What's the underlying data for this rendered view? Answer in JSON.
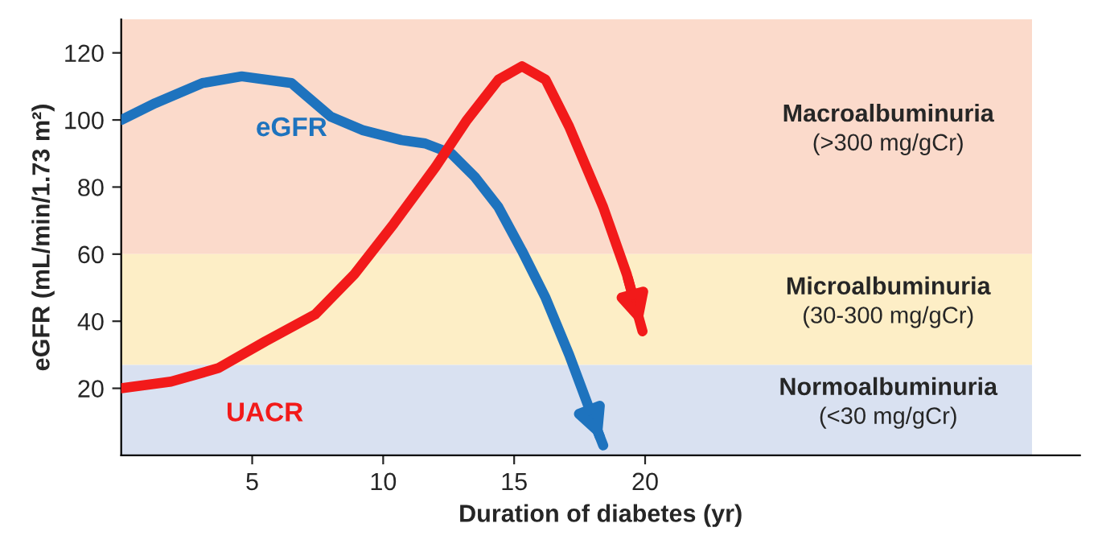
{
  "chart_data": {
    "type": "line",
    "xlabel": "Duration of diabetes (yr)",
    "ylabel": "eGFR (mL/min/1.73 m²)",
    "xlim": [
      0,
      36.6
    ],
    "ylim": [
      0,
      130
    ],
    "xticks": [
      5,
      10,
      15,
      20
    ],
    "yticks": [
      20,
      40,
      60,
      80,
      100,
      120
    ],
    "grid": false,
    "legend": false,
    "marker": "none",
    "line_style": "solid",
    "series": [
      {
        "name": "eGFR",
        "color": "#1e73be",
        "x": [
          0,
          1.3,
          3.1,
          4.6,
          6.5,
          7.1,
          8,
          9.2,
          10.7,
          11.6,
          12.6,
          13.5,
          14.4,
          15.3,
          16.2,
          17.1,
          18.2,
          18.4
        ],
        "values": [
          100,
          105,
          111,
          113,
          111,
          107,
          101,
          97,
          94,
          93,
          90,
          83,
          74,
          61,
          47,
          30,
          7,
          3
        ]
      },
      {
        "name": "UACR",
        "color": "#f21a1a",
        "x": [
          0,
          1.9,
          3.7,
          5.5,
          7.4,
          8.9,
          10.4,
          12,
          13.2,
          14.4,
          15.3,
          16.2,
          17.1,
          18.4,
          19.3,
          19.9
        ],
        "values": [
          20,
          22,
          26,
          34,
          42,
          54,
          69,
          86,
          100,
          112,
          116,
          112,
          98,
          74,
          54,
          37
        ]
      }
    ],
    "bands": [
      {
        "axis": "y",
        "from": 60,
        "to": 130,
        "label": "Macroalbuminuria\n(>300 mg/gCr)",
        "color": "#fbdacb"
      },
      {
        "axis": "y",
        "from": 27,
        "to": 60,
        "label": "Microalbuminuria\n(30-300 mg/gCr)",
        "color": "#fdeec6"
      },
      {
        "axis": "y",
        "from": 0,
        "to": 27,
        "label": "Normoalbuminuria\n(<30 mg/gCr)",
        "color": "#d9e1f1"
      }
    ]
  }
}
